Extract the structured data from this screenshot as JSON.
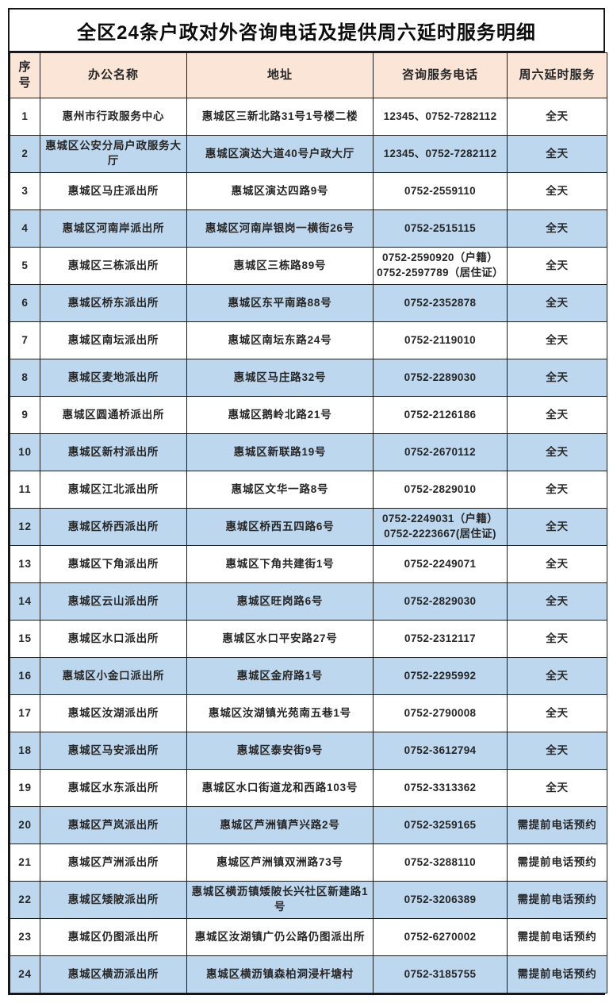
{
  "page": {
    "title": "全区24条户政对外咨询电话及提供周六延时服务明细"
  },
  "table": {
    "headers": [
      "序号",
      "办公名称",
      "地址",
      "咨询服务电话",
      "周六延时服务"
    ],
    "rows": [
      {
        "no": "1",
        "name": "惠州市行政服务中心",
        "address": "惠城区三新北路31号1号楼二楼",
        "phones": [
          "12345、0752-7282112"
        ],
        "saturday": "全天"
      },
      {
        "no": "2",
        "name": "惠城区公安分局户政服务大厅",
        "address": "惠城区演达大道40号户政大厅",
        "phones": [
          "12345、0752-7282112"
        ],
        "saturday": "全天"
      },
      {
        "no": "3",
        "name": "惠城区马庄派出所",
        "address": "惠城区演达四路9号",
        "phones": [
          "0752-2559110"
        ],
        "saturday": "全天"
      },
      {
        "no": "4",
        "name": "惠城区河南岸派出所",
        "address": "惠城区河南岸银岗一横街26号",
        "phones": [
          "0752-2515115"
        ],
        "saturday": "全天"
      },
      {
        "no": "5",
        "name": "惠城区三栋派出所",
        "address": "惠城区三栋路89号",
        "phones": [
          "0752-2590920（户籍）",
          "0752-2597789（居住证）"
        ],
        "saturday": "全天"
      },
      {
        "no": "6",
        "name": "惠城区桥东派出所",
        "address": "惠城区东平南路88号",
        "phones": [
          "0752-2352878"
        ],
        "saturday": "全天"
      },
      {
        "no": "7",
        "name": "惠城区南坛派出所",
        "address": "惠城区南坛东路24号",
        "phones": [
          "0752-2119010"
        ],
        "saturday": "全天"
      },
      {
        "no": "8",
        "name": "惠城区麦地派出所",
        "address": "惠城区马庄路32号",
        "phones": [
          "0752-2289030"
        ],
        "saturday": "全天"
      },
      {
        "no": "9",
        "name": "惠城区圆通桥派出所",
        "address": "惠城区鹅岭北路21号",
        "phones": [
          "0752-2126186"
        ],
        "saturday": "全天"
      },
      {
        "no": "10",
        "name": "惠城区新村派出所",
        "address": "惠城区新联路19号",
        "phones": [
          "0752-2670112"
        ],
        "saturday": "全天"
      },
      {
        "no": "11",
        "name": "惠城区江北派出所",
        "address": "惠城区文华一路8号",
        "phones": [
          "0752-2829010"
        ],
        "saturday": "全天"
      },
      {
        "no": "12",
        "name": "惠城区桥西派出所",
        "address": "惠城区桥西五四路6号",
        "phones": [
          "0752-2249031（户籍）",
          "0752-2223667(居住证)"
        ],
        "saturday": "全天"
      },
      {
        "no": "13",
        "name": "惠城区下角派出所",
        "address": "惠城区下角共建街1号",
        "phones": [
          "0752-2249071"
        ],
        "saturday": "全天"
      },
      {
        "no": "14",
        "name": "惠城区云山派出所",
        "address": "惠城区旺岗路6号",
        "phones": [
          "0752-2829030"
        ],
        "saturday": "全天"
      },
      {
        "no": "15",
        "name": "惠城区水口派出所",
        "address": "惠城区水口平安路27号",
        "phones": [
          "0752-2312117"
        ],
        "saturday": "全天"
      },
      {
        "no": "16",
        "name": "惠城区小金口派出所",
        "address": "惠城区金府路1号",
        "phones": [
          "0752-2295992"
        ],
        "saturday": "全天"
      },
      {
        "no": "17",
        "name": "惠城区汝湖派出所",
        "address": "惠城区汝湖镇光苑南五巷1号",
        "phones": [
          "0752-2790008"
        ],
        "saturday": "全天"
      },
      {
        "no": "18",
        "name": "惠城区马安派出所",
        "address": "惠城区泰安街9号",
        "phones": [
          "0752-3612794"
        ],
        "saturday": "全天"
      },
      {
        "no": "19",
        "name": "惠城区水东派出所",
        "address": "惠城区水口街道龙和西路103号",
        "phones": [
          "0752-3313362"
        ],
        "saturday": "全天"
      },
      {
        "no": "20",
        "name": "惠城区芦岚派出所",
        "address": "惠城区芦洲镇芦兴路2号",
        "phones": [
          "0752-3259165"
        ],
        "saturday": "需提前电话预约"
      },
      {
        "no": "21",
        "name": "惠城区芦洲派出所",
        "address": "惠城区芦洲镇双洲路73号",
        "phones": [
          "0752-3288110"
        ],
        "saturday": "需提前电话预约"
      },
      {
        "no": "22",
        "name": "惠城区矮陂派出所",
        "address": "惠城区横沥镇矮陂长兴社区新建路1号",
        "phones": [
          "0752-3206389"
        ],
        "saturday": "需提前电话预约"
      },
      {
        "no": "23",
        "name": "惠城区仍图派出所",
        "address": "惠城区汝湖镇广仍公路仍图派出所",
        "phones": [
          "0752-6270002"
        ],
        "saturday": "需提前电话预约"
      },
      {
        "no": "24",
        "name": "惠城区横沥派出所",
        "address": "惠城区横沥镇森柏洞浸杆塘村",
        "phones": [
          "0752-3185755"
        ],
        "saturday": "需提前电话预约"
      }
    ]
  },
  "colors": {
    "header_bg": "#fbe5d6",
    "stripe_row_bg": "#bdd7ee",
    "white_row_bg": "#ffffff",
    "border": "#1c1c1c",
    "text": "#262626"
  }
}
